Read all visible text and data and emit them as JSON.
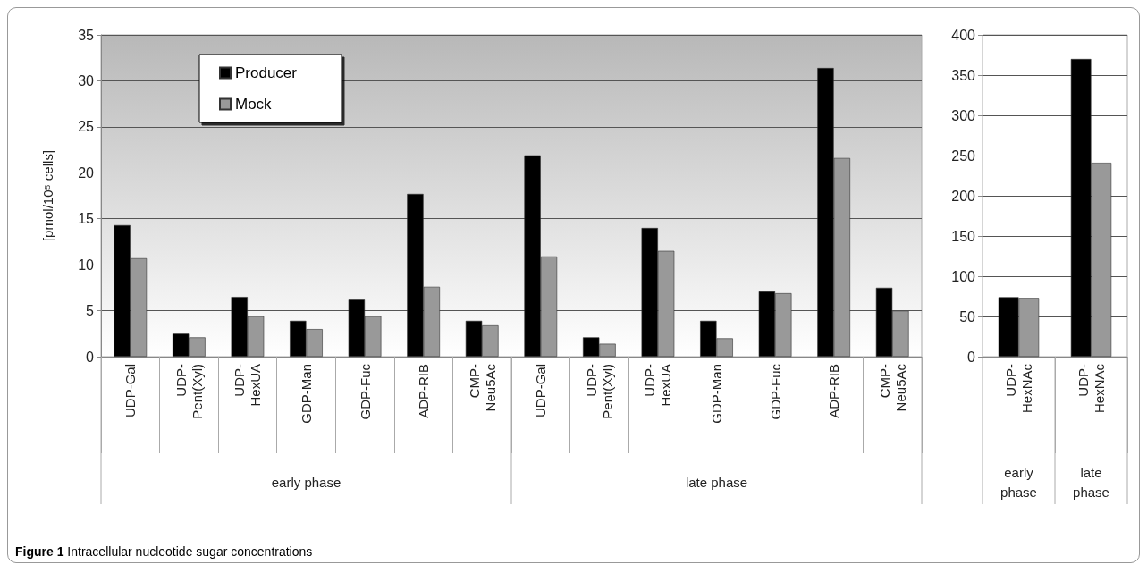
{
  "chart_data": [
    {
      "type": "bar",
      "title": "Figure 1 Intracellular nucleotide sugar concentrations",
      "ylabel": "[pmol/10⁵ cells]",
      "categories": [
        "UDP-Gal",
        "UDP-Pent(Xyl)",
        "UDP-HexUA",
        "GDP-Man",
        "GDP-Fuc",
        "ADP-RIB",
        "CMP-Neu5Ac",
        "UDP-Gal",
        "UDP-Pent(Xyl)",
        "UDP-HexUA",
        "GDP-Man",
        "GDP-Fuc",
        "ADP-RIB",
        "CMP-Neu5Ac"
      ],
      "series": [
        {
          "name": "Producer",
          "color": "#000000",
          "values": [
            14.3,
            2.5,
            6.5,
            3.9,
            6.2,
            17.7,
            3.9,
            21.9,
            2.1,
            14.0,
            3.9,
            7.1,
            31.4,
            7.5
          ]
        },
        {
          "name": "Mock",
          "color": "#999999",
          "values": [
            10.7,
            2.1,
            4.4,
            3.0,
            4.4,
            7.6,
            3.4,
            10.9,
            1.4,
            11.5,
            2.0,
            6.9,
            21.6,
            5.0
          ]
        }
      ],
      "ylim": [
        0,
        35
      ],
      "yticks": [
        0,
        5,
        10,
        15,
        20,
        25,
        30,
        35
      ],
      "grid": "y",
      "legend": "top left",
      "annotations": [
        "early phase",
        "late phase"
      ]
    },
    {
      "type": "bar",
      "categories": [
        "UDP-HexNAc",
        "UDP-HexNAc"
      ],
      "series": [
        {
          "color": "#000000",
          "values": [
            74,
            370
          ]
        },
        {
          "color": "#999999",
          "values": [
            73,
            241
          ]
        }
      ],
      "ylim": [
        0,
        400
      ],
      "yticks": [
        0,
        50,
        100,
        150,
        200,
        250,
        300,
        350,
        400
      ],
      "grid": "y",
      "annotations": [
        "early phase",
        "late phase"
      ]
    }
  ]
}
